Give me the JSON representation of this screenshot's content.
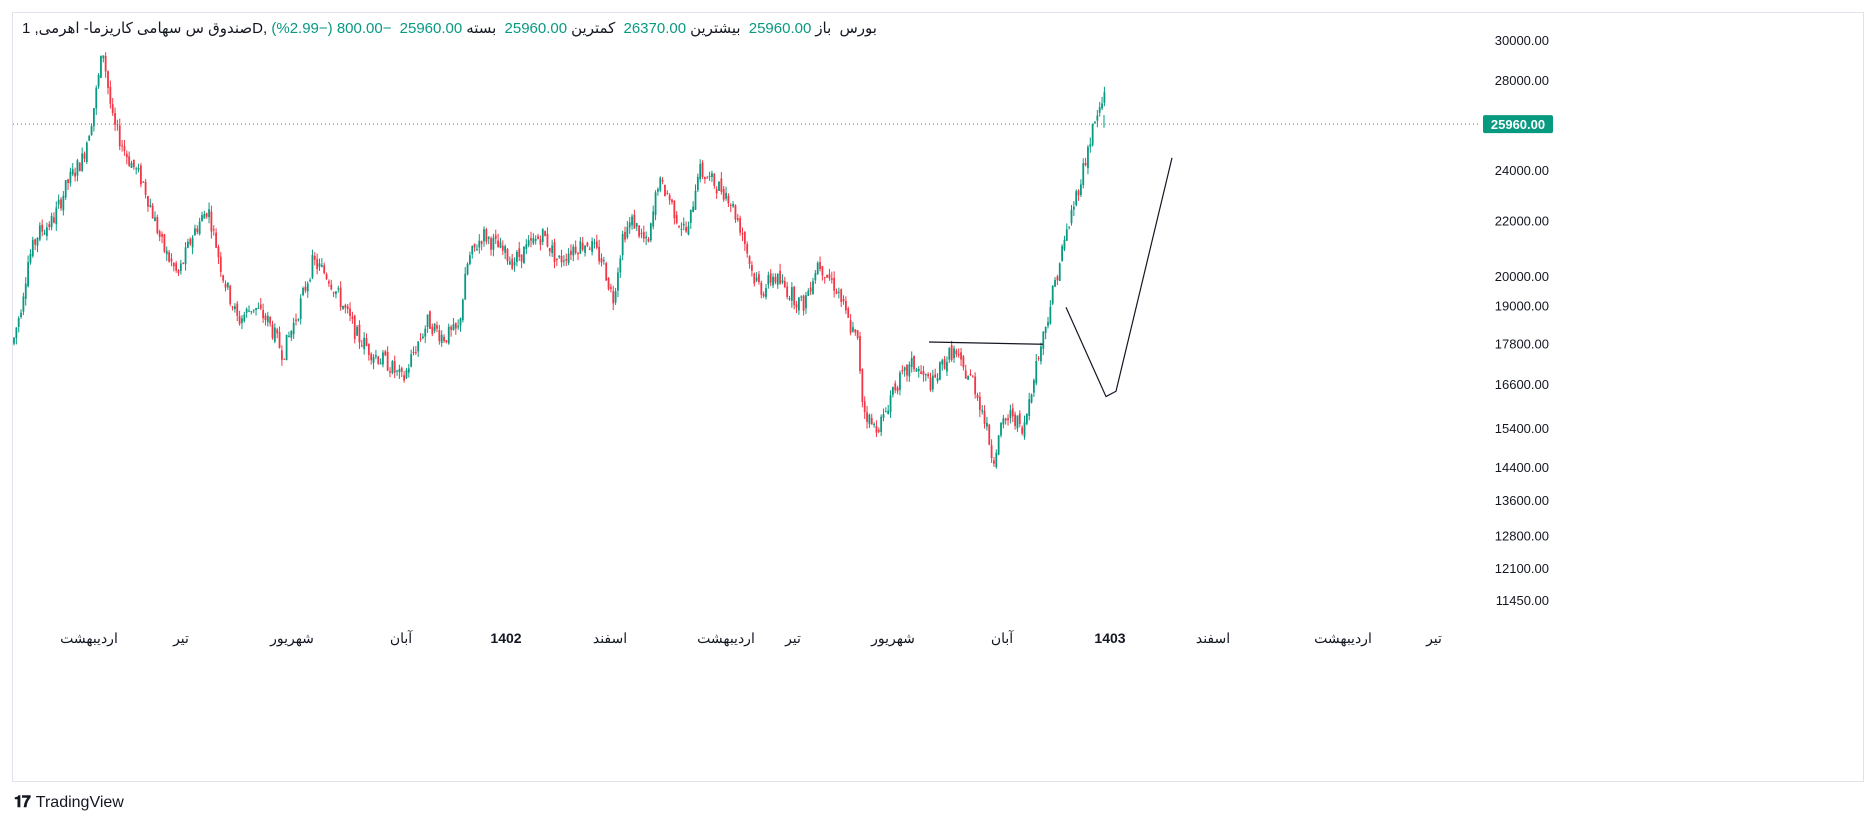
{
  "header": {
    "symbol_line": "صندوق س سهامی کاریزما- اهرمی, 1D, بورس",
    "open_label": "باز",
    "open_value": "25960.00",
    "high_label": "بیشترین",
    "high_value": "26370.00",
    "low_label": "کمترین",
    "low_value": "25960.00",
    "close_label": "بسته",
    "close_value": "25960.00",
    "change": "−800.00 (−2.99%)"
  },
  "branding": {
    "logo_text": "TradingView"
  },
  "colors": {
    "up": "#089981",
    "down": "#f23645",
    "price_line": "#089981",
    "drawing": "#131722"
  },
  "chart_data": {
    "type": "candlestick",
    "y_scale": "log",
    "ylim": [
      11200,
      31000
    ],
    "y_ticks": [
      "30000.00",
      "28000.00",
      "24000.00",
      "22000.00",
      "20000.00",
      "19000.00",
      "17800.00",
      "16600.00",
      "15400.00",
      "14400.00",
      "13600.00",
      "12800.00",
      "12100.00",
      "11450.00"
    ],
    "last_price": "25960.00",
    "x_labels": [
      "اردیبهشت",
      "تیر",
      "شهریور",
      "آبان",
      "1402",
      "اسفند",
      "اردیبهشت",
      "تیر",
      "شهریور",
      "آبان",
      "1403",
      "اسفند",
      "اردیبهشت",
      "تیر"
    ],
    "x_labels_bold": [
      false,
      false,
      false,
      false,
      true,
      false,
      false,
      false,
      false,
      false,
      true,
      false,
      false,
      false
    ],
    "price_path": [
      [
        0,
        17800
      ],
      [
        8,
        19000
      ],
      [
        15,
        20500
      ],
      [
        25,
        21500
      ],
      [
        40,
        22000
      ],
      [
        55,
        23500
      ],
      [
        70,
        24500
      ],
      [
        80,
        26500
      ],
      [
        90,
        29500
      ],
      [
        100,
        26000
      ],
      [
        115,
        24500
      ],
      [
        130,
        23500
      ],
      [
        150,
        21000
      ],
      [
        165,
        20000
      ],
      [
        180,
        21500
      ],
      [
        195,
        22500
      ],
      [
        210,
        20000
      ],
      [
        225,
        18500
      ],
      [
        240,
        19000
      ],
      [
        255,
        18500
      ],
      [
        270,
        17500
      ],
      [
        285,
        18800
      ],
      [
        300,
        20500
      ],
      [
        315,
        20000
      ],
      [
        330,
        19000
      ],
      [
        345,
        18000
      ],
      [
        360,
        17500
      ],
      [
        375,
        17200
      ],
      [
        390,
        16700
      ],
      [
        400,
        17500
      ],
      [
        415,
        18500
      ],
      [
        430,
        18000
      ],
      [
        445,
        18200
      ],
      [
        455,
        20500
      ],
      [
        470,
        21500
      ],
      [
        485,
        21000
      ],
      [
        500,
        20500
      ],
      [
        515,
        21000
      ],
      [
        530,
        21500
      ],
      [
        545,
        20500
      ],
      [
        560,
        21000
      ],
      [
        575,
        21200
      ],
      [
        590,
        20500
      ],
      [
        600,
        19200
      ],
      [
        610,
        21500
      ],
      [
        620,
        22000
      ],
      [
        635,
        21000
      ],
      [
        645,
        23500
      ],
      [
        655,
        23000
      ],
      [
        665,
        22000
      ],
      [
        675,
        21500
      ],
      [
        685,
        24000
      ],
      [
        700,
        23500
      ],
      [
        715,
        23000
      ],
      [
        730,
        21500
      ],
      [
        740,
        20000
      ],
      [
        750,
        19500
      ],
      [
        760,
        20000
      ],
      [
        775,
        19500
      ],
      [
        790,
        19000
      ],
      [
        805,
        20500
      ],
      [
        815,
        20000
      ],
      [
        825,
        19500
      ],
      [
        835,
        18500
      ],
      [
        845,
        17800
      ],
      [
        850,
        16000
      ],
      [
        860,
        15400
      ],
      [
        870,
        15600
      ],
      [
        880,
        16500
      ],
      [
        890,
        16800
      ],
      [
        900,
        17200
      ],
      [
        910,
        16800
      ],
      [
        920,
        16600
      ],
      [
        930,
        17200
      ],
      [
        940,
        17600
      ],
      [
        950,
        17000
      ],
      [
        960,
        16700
      ],
      [
        970,
        15800
      ],
      [
        980,
        14600
      ],
      [
        990,
        15500
      ],
      [
        1000,
        15800
      ],
      [
        1010,
        15200
      ],
      [
        1020,
        16800
      ],
      [
        1030,
        18000
      ],
      [
        1040,
        19500
      ],
      [
        1050,
        21000
      ],
      [
        1060,
        22500
      ],
      [
        1070,
        24000
      ],
      [
        1080,
        25800
      ],
      [
        1090,
        27000
      ],
      [
        1095,
        28500
      ],
      [
        1103,
        25960
      ]
    ],
    "drawings": [
      {
        "type": "trend-line",
        "points": [
          [
            916,
            17850
          ],
          [
            1030,
            17780
          ]
        ]
      },
      {
        "type": "polyline",
        "points": [
          [
            1053,
            18950
          ],
          [
            1093,
            16250
          ],
          [
            1103,
            16400
          ],
          [
            1159,
            24500
          ]
        ]
      }
    ]
  }
}
